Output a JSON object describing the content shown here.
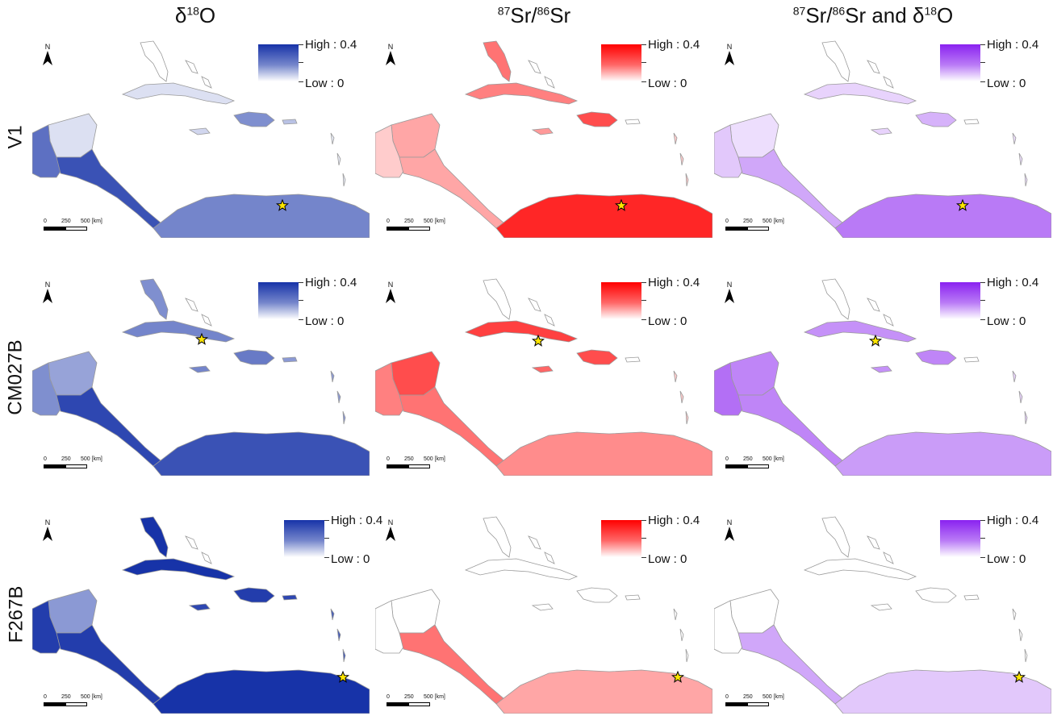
{
  "column_titles": {
    "oxygen": {
      "prefix": "δ",
      "sup": "18",
      "suffix": "O"
    },
    "strontium": {
      "sup1": "87",
      "mid": "Sr/",
      "sup2": "86",
      "suffix": "Sr"
    },
    "combined": {
      "sup1": "87",
      "mid": "Sr/",
      "sup2": "86",
      "suffix": "Sr and δ",
      "sup3": "18",
      "end": "O"
    }
  },
  "row_labels": [
    "V1",
    "CM027B",
    "F267B"
  ],
  "legend": {
    "high": "High : 0.4",
    "low": "Low : 0"
  },
  "north_arrow": "N",
  "scalebar": {
    "t0": "0",
    "t1": "250",
    "t2": "500 [km]"
  },
  "colors": {
    "oxygen": "#1733a8",
    "strontium": "#ff0000",
    "combined": "#8a22f0",
    "outline": "#9a9a9a",
    "star_fill": "#ffe600"
  },
  "icons": {
    "north": "north-arrow-icon",
    "star": "star-marker-icon"
  }
}
